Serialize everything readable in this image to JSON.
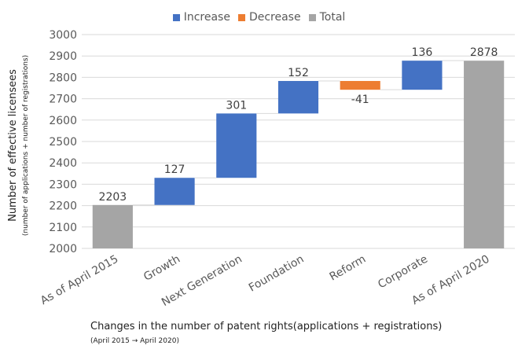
{
  "chart_data": {
    "type": "bar",
    "subtype": "waterfall",
    "categories": [
      "As of April 2015",
      "Growth",
      "Next Generation",
      "Foundation",
      "Reform",
      "Corporate",
      "As of April 2020"
    ],
    "values": [
      2203,
      127,
      301,
      152,
      -41,
      136,
      2878
    ],
    "kinds": [
      "total",
      "increase",
      "increase",
      "increase",
      "decrease",
      "increase",
      "total"
    ],
    "data_labels": [
      "2203",
      "127",
      "301",
      "152",
      "-41",
      "136",
      "2878"
    ],
    "ylim": [
      2000,
      3000
    ],
    "yticks": [
      2000,
      2100,
      2200,
      2300,
      2400,
      2500,
      2600,
      2700,
      2800,
      2900,
      3000
    ],
    "grid": true,
    "legend_position": "top",
    "legend": [
      {
        "label": "Increase",
        "color": "#4472c4"
      },
      {
        "label": "Decrease",
        "color": "#ed7d31"
      },
      {
        "label": "Total",
        "color": "#a5a5a5"
      }
    ],
    "ylabel": "Number of effective licensees",
    "ylabel_sub": "(number of applications + number of registrations)",
    "xlabel": "Changes in the number of patent rights(applications + registrations)",
    "xlabel_sub": "(April 2015 → April 2020)"
  }
}
